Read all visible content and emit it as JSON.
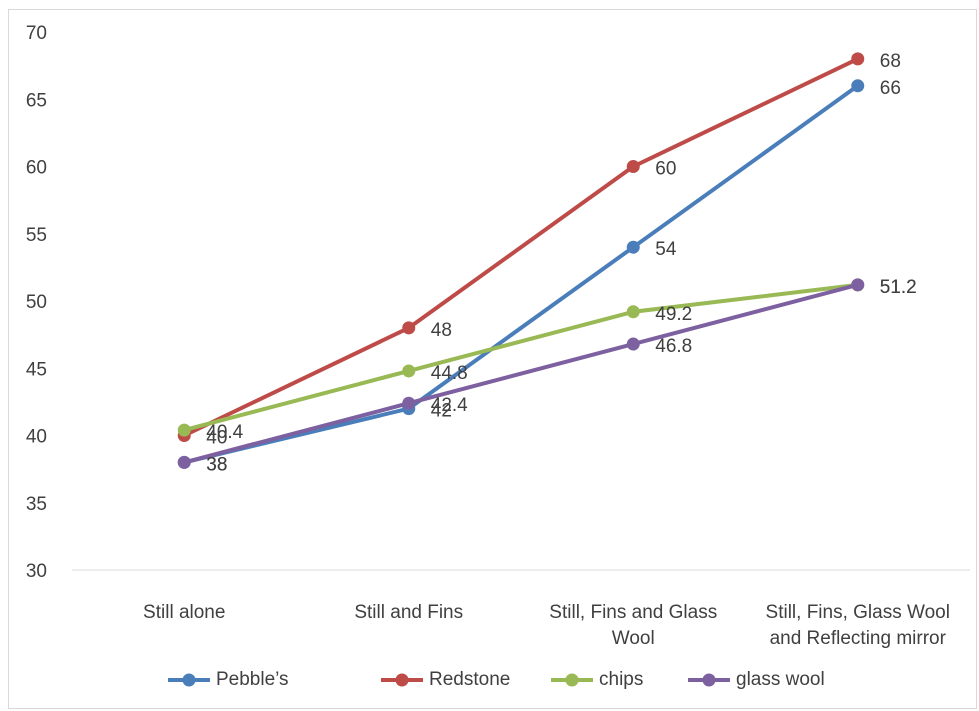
{
  "chart_data": {
    "type": "line",
    "title": "",
    "xlabel": "",
    "ylabel": "",
    "ylim": [
      30,
      70
    ],
    "yticks": [
      30,
      35,
      40,
      45,
      50,
      55,
      60,
      65,
      70
    ],
    "grid": "none",
    "legend_position": "bottom",
    "categories": [
      [
        "Still alone"
      ],
      [
        "Still and Fins"
      ],
      [
        "Still, Fins and Glass",
        "Wool"
      ],
      [
        "Still, Fins, Glass Wool",
        "and Reflecting mirror"
      ]
    ],
    "series": [
      {
        "name": "Pebble’s",
        "color": "#4A7EBB",
        "values": [
          38,
          42,
          54,
          66
        ],
        "labels": [
          "38",
          "42",
          "54",
          "66"
        ]
      },
      {
        "name": "Redstone",
        "color": "#BE4B48",
        "values": [
          40,
          48,
          60,
          68
        ],
        "labels": [
          "40",
          "48",
          "60",
          "68"
        ]
      },
      {
        "name": "chips",
        "color": "#98B954",
        "values": [
          40.4,
          44.8,
          49.2,
          51.2
        ],
        "labels": [
          "40.4",
          "44.8",
          "49.2",
          "51.2"
        ]
      },
      {
        "name": "glass wool",
        "color": "#7D60A0",
        "values": [
          38,
          42.4,
          46.8,
          51.2
        ],
        "labels": [
          "38",
          "42.4",
          "46.8",
          "51.2"
        ]
      }
    ]
  }
}
